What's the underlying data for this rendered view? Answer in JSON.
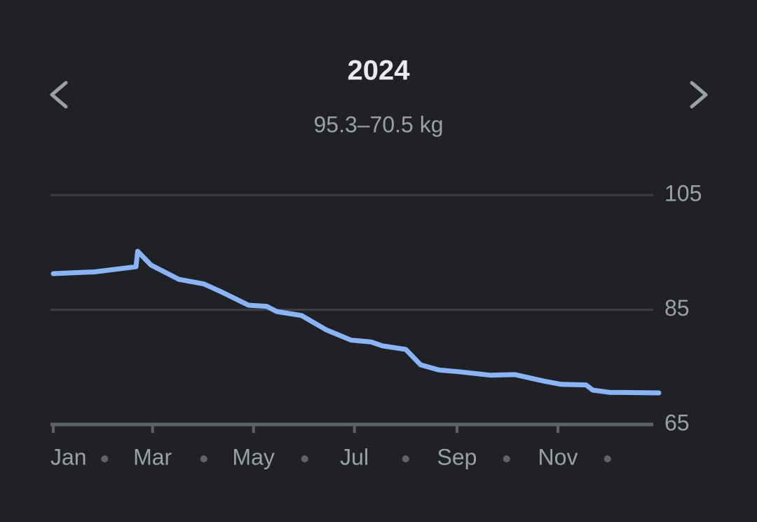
{
  "chart_data": {
    "type": "line",
    "title": "2024",
    "subtitle": "95.3–70.5 kg",
    "x": [
      0,
      25,
      50,
      51,
      59,
      76,
      91,
      101,
      118,
      129,
      135,
      150,
      165,
      180,
      192,
      199,
      213,
      222,
      233,
      245,
      264,
      279,
      296,
      307,
      322,
      326,
      336,
      366
    ],
    "values": [
      91.3,
      91.6,
      92.5,
      95.2,
      92.8,
      90.3,
      89.5,
      88.2,
      85.8,
      85.6,
      84.7,
      84.0,
      81.5,
      79.7,
      79.4,
      78.7,
      78.1,
      75.4,
      74.5,
      74.2,
      73.6,
      73.7,
      72.6,
      72.0,
      71.9,
      71.0,
      70.6,
      70.5
    ],
    "color": "#8ab4f8",
    "xlim": [
      0,
      366
    ],
    "xticks": [
      {
        "value": 0,
        "label": "Jan"
      },
      {
        "value": 60,
        "label": "Mar"
      },
      {
        "value": 121,
        "label": "May"
      },
      {
        "value": 182,
        "label": "Jul"
      },
      {
        "value": 244,
        "label": "Sep"
      },
      {
        "value": 305,
        "label": "Nov"
      }
    ],
    "xminorticks": [
      31,
      91,
      152,
      213,
      274,
      335
    ],
    "ylim": [
      65,
      105
    ],
    "yticks": [
      65,
      85,
      105
    ],
    "grid": true
  }
}
